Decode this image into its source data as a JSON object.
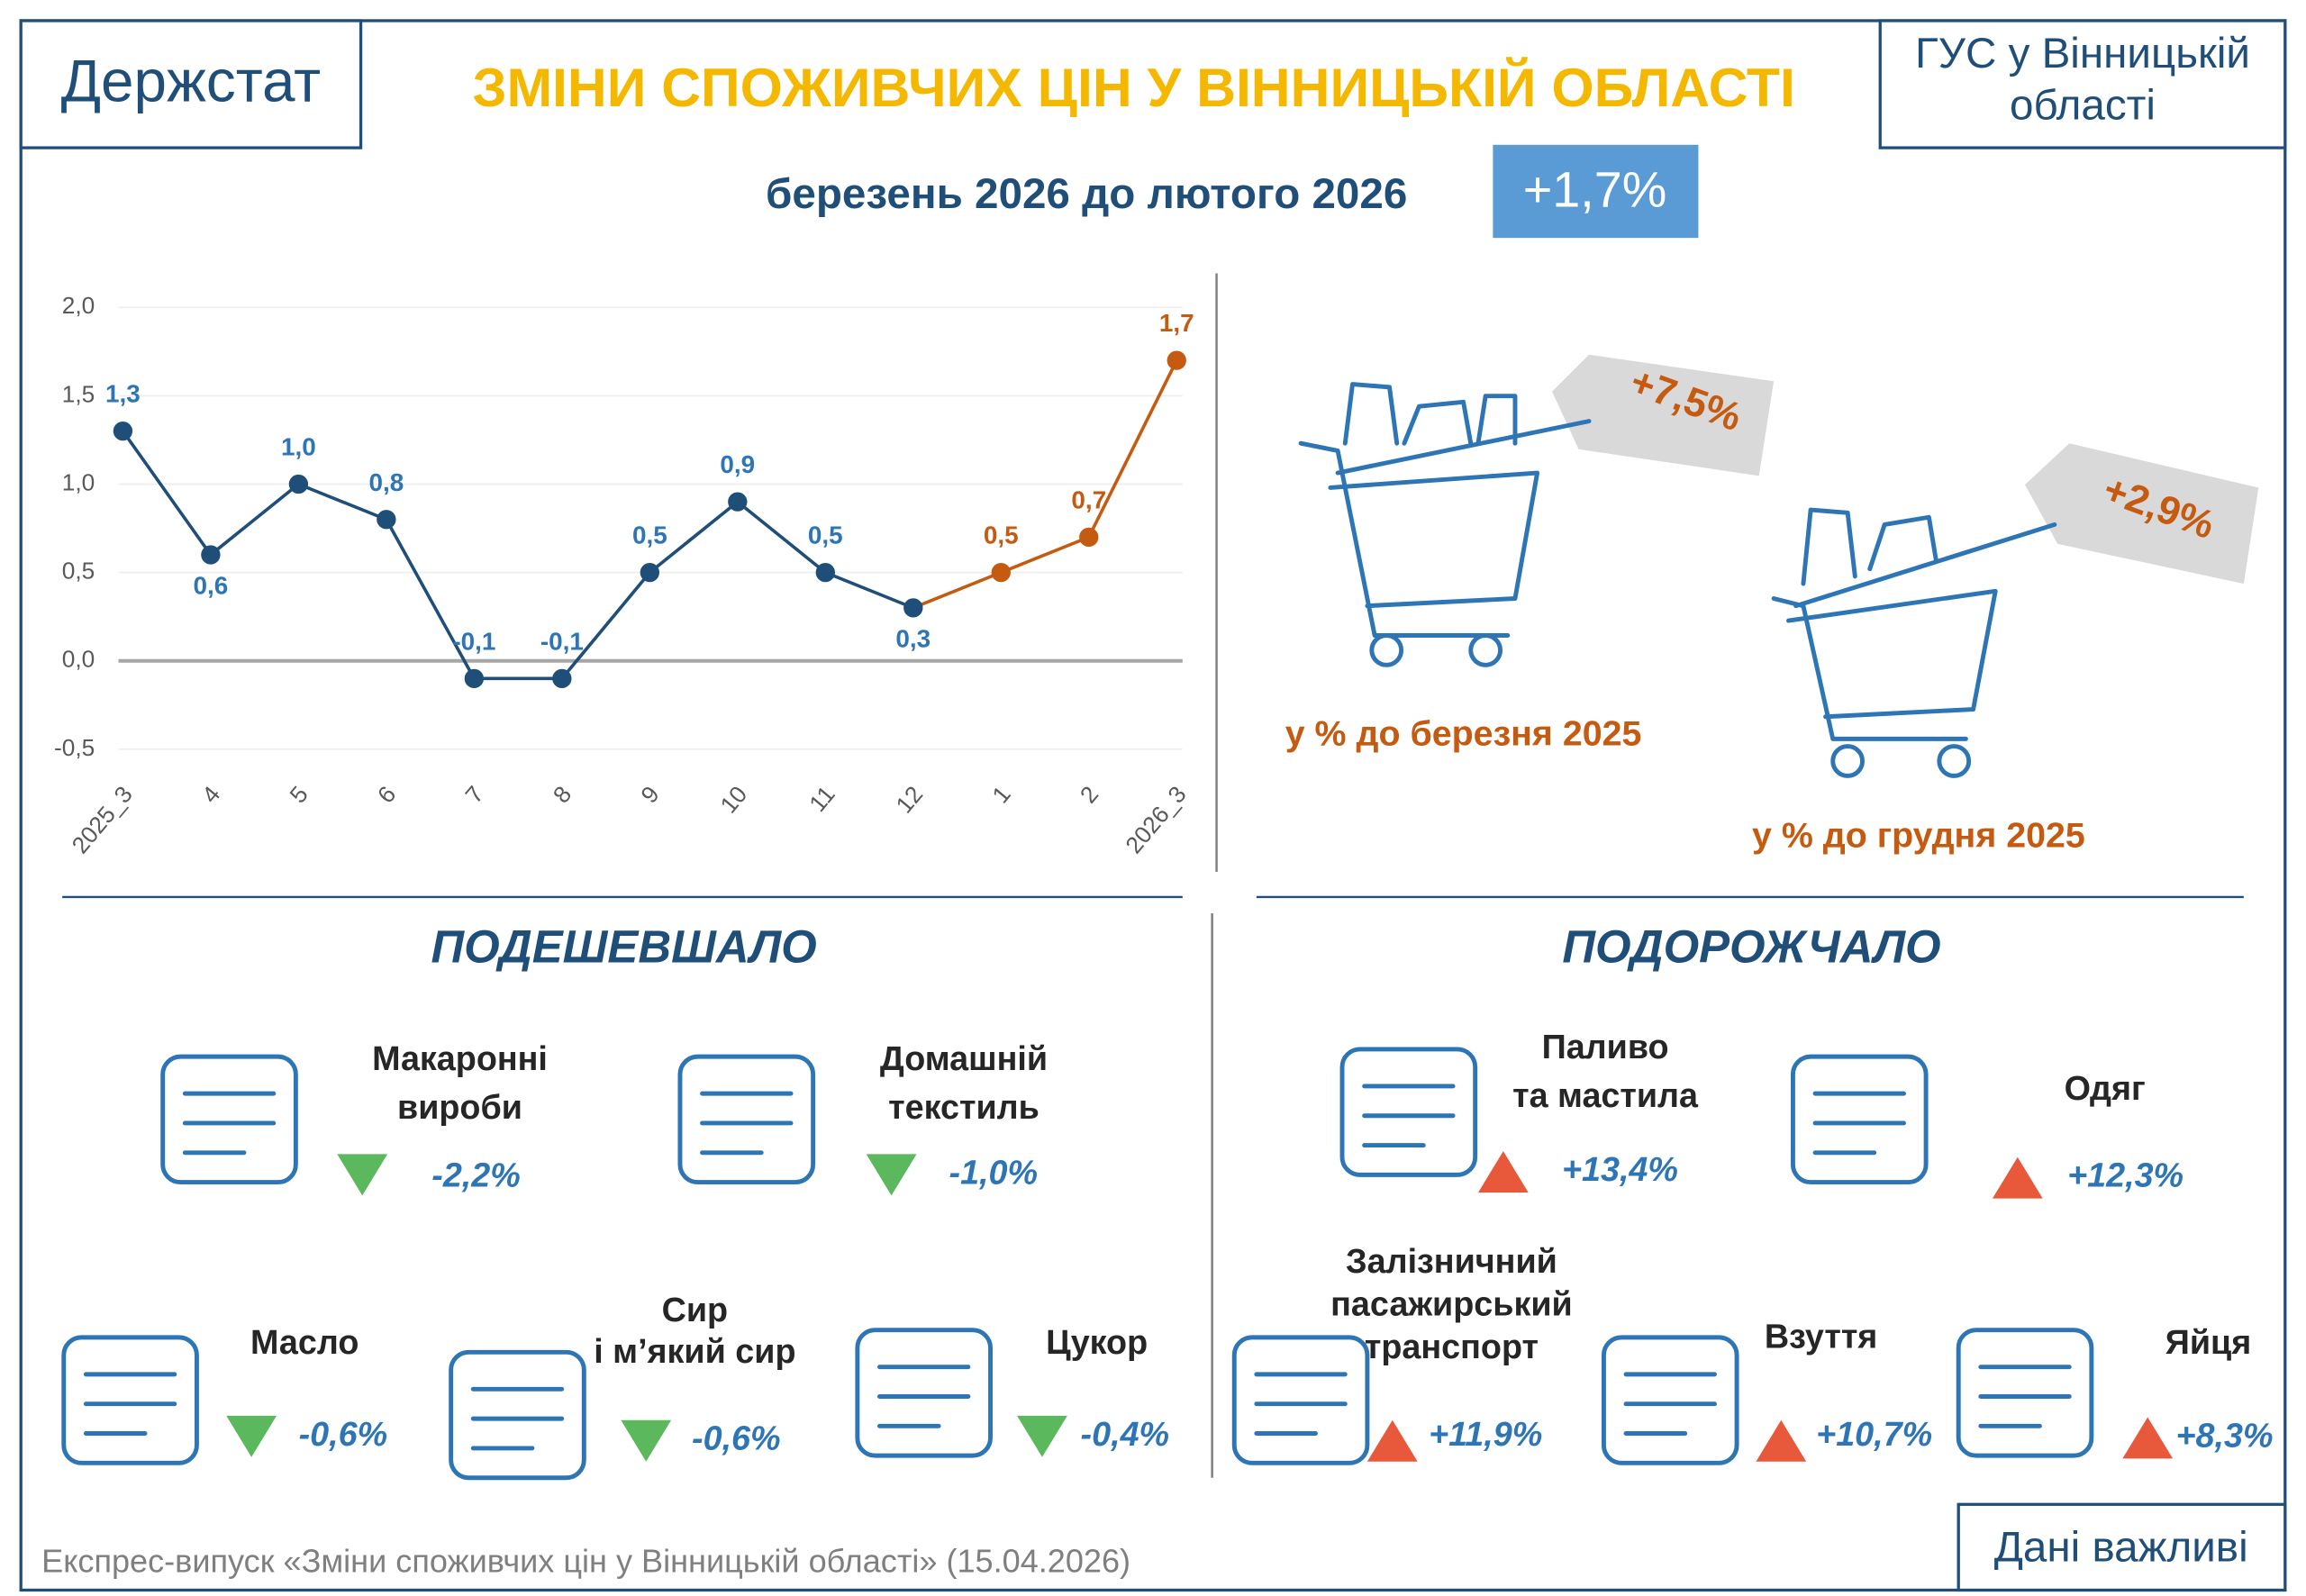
{
  "header": {
    "logo": "Держстат",
    "title": "ЗМІНИ СПОЖИВЧИХ ЦІН У ВІННИЦЬКІЙ ОБЛАСТІ",
    "office": [
      "ГУС у Вінницькій",
      "області"
    ],
    "subtitle": "березень 2026 до лютого 2026",
    "headline": "+1,7%"
  },
  "chart_data": {
    "type": "line",
    "categories": [
      "2025_3",
      "4",
      "5",
      "6",
      "7",
      "8",
      "9",
      "10",
      "11",
      "12",
      "1",
      "2",
      "2026_3"
    ],
    "values": [
      1.3,
      0.6,
      1.0,
      0.8,
      -0.1,
      -0.1,
      0.5,
      0.9,
      0.5,
      0.3,
      0.5,
      0.7,
      1.7
    ],
    "value_labels": [
      "1,3",
      "0,6",
      "1,0",
      "0,8",
      "-0,1",
      "-0,1",
      "0,5",
      "0,9",
      "0,5",
      "0,3",
      "0,5",
      "0,7",
      "1,7"
    ],
    "point_colors": [
      "#1f4e79",
      "#1f4e79",
      "#1f4e79",
      "#1f4e79",
      "#1f4e79",
      "#1f4e79",
      "#1f4e79",
      "#1f4e79",
      "#1f4e79",
      "#1f4e79",
      "#c55a11",
      "#c55a11",
      "#c55a11"
    ],
    "ylim": [
      -0.5,
      2.0
    ],
    "yticks": [
      {
        "value": -0.5,
        "label": "-0,5"
      },
      {
        "value": 0,
        "label": "0,0"
      },
      {
        "value": 0.5,
        "label": "0,5"
      },
      {
        "value": 1,
        "label": "1,0"
      },
      {
        "value": 1.5,
        "label": "1,5"
      },
      {
        "value": 2,
        "label": "2,0"
      }
    ],
    "grid": true
  },
  "baskets": [
    {
      "value": "+7,5%",
      "label": "у % до березня 2025"
    },
    {
      "value": "+2,9%",
      "label": "у % до грудня 2025"
    }
  ],
  "cheaper": {
    "title": "ПОДЕШЕВШАЛО",
    "items": [
      {
        "name": [
          "Макаронні",
          "вироби"
        ],
        "change": "-2,2%"
      },
      {
        "name": [
          "Домашній",
          "текстиль"
        ],
        "change": "-1,0%"
      },
      {
        "name": [
          "Масло"
        ],
        "change": "-0,6%"
      },
      {
        "name": [
          "Сир",
          "і м’який сир"
        ],
        "change": "-0,6%"
      },
      {
        "name": [
          "Цукор"
        ],
        "change": "-0,4%"
      }
    ]
  },
  "pricier": {
    "title": "ПОДОРОЖЧАЛО",
    "items": [
      {
        "name": [
          "Паливо",
          "та мастила"
        ],
        "change": "+13,4%"
      },
      {
        "name": [
          "Одяг"
        ],
        "change": "+12,3%"
      },
      {
        "name": [
          "Залізничний",
          "пасажирський",
          "транспорт"
        ],
        "change": "+11,9%"
      },
      {
        "name": [
          "Взуття"
        ],
        "change": "+10,7%"
      },
      {
        "name": [
          "Яйця"
        ],
        "change": "+8,3%"
      }
    ]
  },
  "footer": {
    "source": "Експрес-випуск «Зміни споживчих цін у Вінницькій області» (15.04.2026)",
    "badge": "Дані важливі"
  }
}
